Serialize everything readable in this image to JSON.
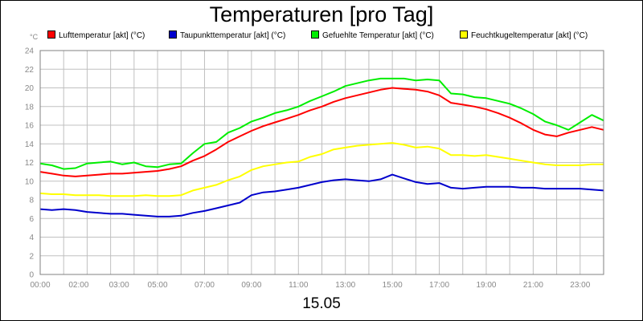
{
  "chart_data": {
    "type": "line",
    "title": "Temperaturen [pro Tag]",
    "y_unit": "°C",
    "date_label": "15.05",
    "ylim": [
      0,
      24
    ],
    "y_ticks": [
      0,
      2,
      4,
      6,
      8,
      10,
      12,
      14,
      16,
      18,
      20,
      22,
      24
    ],
    "xlim_hours": [
      0,
      24
    ],
    "x_ticks": [
      {
        "h": 0,
        "label": "00:00"
      },
      {
        "h": 2,
        "label": "02:00"
      },
      {
        "h": 3,
        "label": "03:00"
      },
      {
        "h": 5,
        "label": "05:00"
      },
      {
        "h": 7,
        "label": "07:00"
      },
      {
        "h": 9,
        "label": "09:00"
      },
      {
        "h": 11,
        "label": "11:00"
      },
      {
        "h": 13,
        "label": "13:00"
      },
      {
        "h": 15,
        "label": "15:00"
      },
      {
        "h": 17,
        "label": "17:00"
      },
      {
        "h": 19,
        "label": "19:00"
      },
      {
        "h": 21,
        "label": "21:00"
      },
      {
        "h": 23,
        "label": "23:00"
      }
    ],
    "grid": true,
    "legend_position": "top",
    "series": [
      {
        "name": "Lufttemperatur [akt] (°C)",
        "color": "#ff0000",
        "x": [
          "00:00",
          "00:30",
          "01:00",
          "01:30",
          "02:00",
          "02:30",
          "03:00",
          "03:30",
          "04:00",
          "04:30",
          "05:00",
          "05:30",
          "06:00",
          "06:30",
          "07:00",
          "07:30",
          "08:00",
          "08:30",
          "09:00",
          "09:30",
          "10:00",
          "10:30",
          "11:00",
          "11:30",
          "12:00",
          "12:30",
          "13:00",
          "13:30",
          "14:00",
          "14:30",
          "15:00",
          "15:30",
          "16:00",
          "16:30",
          "17:00",
          "17:30",
          "18:00",
          "18:30",
          "19:00",
          "19:30",
          "20:00",
          "20:30",
          "21:00",
          "21:30",
          "22:00",
          "22:30",
          "23:00",
          "23:30",
          "24:00"
        ],
        "values": [
          11.0,
          10.8,
          10.6,
          10.5,
          10.6,
          10.7,
          10.8,
          10.8,
          10.9,
          11.0,
          11.1,
          11.3,
          11.6,
          12.2,
          12.7,
          13.4,
          14.2,
          14.8,
          15.4,
          15.9,
          16.3,
          16.7,
          17.1,
          17.6,
          18.0,
          18.5,
          18.9,
          19.2,
          19.5,
          19.8,
          20.0,
          19.9,
          19.8,
          19.6,
          19.2,
          18.4,
          18.2,
          18.0,
          17.7,
          17.3,
          16.8,
          16.2,
          15.5,
          15.0,
          14.8,
          15.2,
          15.5,
          15.8,
          15.5
        ]
      },
      {
        "name": "Taupunkttemperatur [akt] (°C)",
        "color": "#0000cc",
        "x": [
          "00:00",
          "00:30",
          "01:00",
          "01:30",
          "02:00",
          "02:30",
          "03:00",
          "03:30",
          "04:00",
          "04:30",
          "05:00",
          "05:30",
          "06:00",
          "06:30",
          "07:00",
          "07:30",
          "08:00",
          "08:30",
          "09:00",
          "09:30",
          "10:00",
          "10:30",
          "11:00",
          "11:30",
          "12:00",
          "12:30",
          "13:00",
          "13:30",
          "14:00",
          "14:30",
          "15:00",
          "15:30",
          "16:00",
          "16:30",
          "17:00",
          "17:30",
          "18:00",
          "18:30",
          "19:00",
          "19:30",
          "20:00",
          "20:30",
          "21:00",
          "21:30",
          "22:00",
          "22:30",
          "23:00",
          "23:30",
          "24:00"
        ],
        "values": [
          7.0,
          6.9,
          7.0,
          6.9,
          6.7,
          6.6,
          6.5,
          6.5,
          6.4,
          6.3,
          6.2,
          6.2,
          6.3,
          6.6,
          6.8,
          7.1,
          7.4,
          7.7,
          8.5,
          8.8,
          8.9,
          9.1,
          9.3,
          9.6,
          9.9,
          10.1,
          10.2,
          10.1,
          10.0,
          10.2,
          10.7,
          10.3,
          9.9,
          9.7,
          9.8,
          9.3,
          9.2,
          9.3,
          9.4,
          9.4,
          9.4,
          9.3,
          9.3,
          9.2,
          9.2,
          9.2,
          9.2,
          9.1,
          9.0
        ]
      },
      {
        "name": "Gefuehlte Temperatur [akt] (°C)",
        "color": "#00ee00",
        "x": [
          "00:00",
          "00:30",
          "01:00",
          "01:30",
          "02:00",
          "02:30",
          "03:00",
          "03:30",
          "04:00",
          "04:30",
          "05:00",
          "05:30",
          "06:00",
          "06:30",
          "07:00",
          "07:30",
          "08:00",
          "08:30",
          "09:00",
          "09:30",
          "10:00",
          "10:30",
          "11:00",
          "11:30",
          "12:00",
          "12:30",
          "13:00",
          "13:30",
          "14:00",
          "14:30",
          "15:00",
          "15:30",
          "16:00",
          "16:30",
          "17:00",
          "17:30",
          "18:00",
          "18:30",
          "19:00",
          "19:30",
          "20:00",
          "20:30",
          "21:00",
          "21:30",
          "22:00",
          "22:30",
          "23:00",
          "23:30",
          "24:00"
        ],
        "values": [
          11.9,
          11.7,
          11.3,
          11.4,
          11.9,
          12.0,
          12.1,
          11.8,
          12.0,
          11.6,
          11.5,
          11.8,
          11.9,
          13.0,
          14.0,
          14.2,
          15.2,
          15.7,
          16.4,
          16.8,
          17.3,
          17.6,
          18.0,
          18.6,
          19.1,
          19.6,
          20.2,
          20.5,
          20.8,
          21.0,
          21.0,
          21.0,
          20.8,
          20.9,
          20.8,
          19.4,
          19.3,
          19.0,
          18.9,
          18.6,
          18.3,
          17.8,
          17.2,
          16.4,
          16.0,
          15.5,
          16.3,
          17.1,
          16.5
        ]
      },
      {
        "name": "Feuchtkugeltemperatur [akt] (°C)",
        "color": "#ffff00",
        "x": [
          "00:00",
          "00:30",
          "01:00",
          "01:30",
          "02:00",
          "02:30",
          "03:00",
          "03:30",
          "04:00",
          "04:30",
          "05:00",
          "05:30",
          "06:00",
          "06:30",
          "07:00",
          "07:30",
          "08:00",
          "08:30",
          "09:00",
          "09:30",
          "10:00",
          "10:30",
          "11:00",
          "11:30",
          "12:00",
          "12:30",
          "13:00",
          "13:30",
          "14:00",
          "14:30",
          "15:00",
          "15:30",
          "16:00",
          "16:30",
          "17:00",
          "17:30",
          "18:00",
          "18:30",
          "19:00",
          "19:30",
          "20:00",
          "20:30",
          "21:00",
          "21:30",
          "22:00",
          "22:30",
          "23:00",
          "23:30",
          "24:00"
        ],
        "values": [
          8.7,
          8.6,
          8.6,
          8.5,
          8.5,
          8.5,
          8.4,
          8.4,
          8.4,
          8.5,
          8.4,
          8.4,
          8.5,
          9.0,
          9.3,
          9.6,
          10.1,
          10.5,
          11.2,
          11.6,
          11.8,
          12.0,
          12.1,
          12.6,
          12.9,
          13.4,
          13.6,
          13.8,
          13.9,
          14.0,
          14.1,
          13.9,
          13.6,
          13.7,
          13.5,
          12.8,
          12.8,
          12.7,
          12.8,
          12.6,
          12.4,
          12.2,
          12.0,
          11.8,
          11.7,
          11.7,
          11.7,
          11.8,
          11.8
        ]
      }
    ]
  }
}
